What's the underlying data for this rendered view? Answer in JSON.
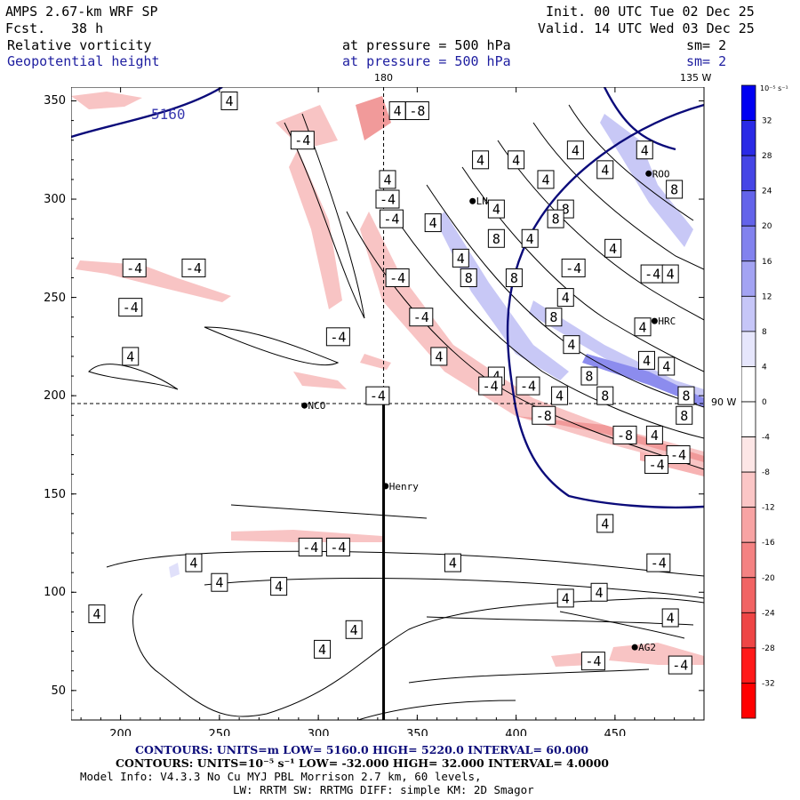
{
  "header": {
    "model": "AMPS 2.67-km WRF SP",
    "forecast_label": "Fcst.",
    "forecast_value": "38 h",
    "init": "Init. 00 UTC Tue 02 Dec 25",
    "valid": "Valid. 14 UTC Wed 03 Dec 25",
    "field1": "Relative vorticity",
    "field1_level": "at pressure =  500 hPa",
    "field1_sm": "sm= 2",
    "field2": "Geopotential height",
    "field2_level": "at pressure =  500 hPa",
    "field2_sm": "sm= 2"
  },
  "map": {
    "lon_labels": [
      {
        "text": "180"
      },
      {
        "text": "135 W"
      },
      {
        "text": "90 W"
      }
    ],
    "x_ticks": [
      200,
      250,
      300,
      350,
      400,
      450
    ],
    "y_ticks": [
      50,
      100,
      150,
      200,
      250,
      300,
      350
    ],
    "x_range": [
      175,
      495
    ],
    "y_range": [
      35,
      357
    ],
    "height_contour_label": "5160",
    "stations": [
      {
        "name": "ROO",
        "x": 467,
        "y": 313
      },
      {
        "name": "LN",
        "x": 378,
        "y": 299
      },
      {
        "name": "HRC",
        "x": 470,
        "y": 238
      },
      {
        "name": "NCO",
        "x": 293,
        "y": 195
      },
      {
        "name": "Henry",
        "x": 334,
        "y": 154
      },
      {
        "name": "AG2",
        "x": 460,
        "y": 72
      }
    ],
    "cross_section": {
      "x_line": 333,
      "y_line": 196
    },
    "vort_labels": [
      {
        "t": "-4",
        "x": 207,
        "y": 265
      },
      {
        "t": "-4",
        "x": 237,
        "y": 265
      },
      {
        "t": "-4",
        "x": 205,
        "y": 245
      },
      {
        "t": "-4",
        "x": 310,
        "y": 230
      },
      {
        "t": "-4",
        "x": 330,
        "y": 200
      },
      {
        "t": "4",
        "x": 205,
        "y": 220
      },
      {
        "t": "-4",
        "x": 337,
        "y": 290
      },
      {
        "t": "-4",
        "x": 340,
        "y": 260
      },
      {
        "t": "-4",
        "x": 335,
        "y": 300
      },
      {
        "t": "4",
        "x": 335,
        "y": 310
      },
      {
        "t": "-4",
        "x": 292,
        "y": 330
      },
      {
        "t": "4",
        "x": 340,
        "y": 345
      },
      {
        "t": "-8",
        "x": 350,
        "y": 345
      },
      {
        "t": "4",
        "x": 255,
        "y": 350
      },
      {
        "t": "4",
        "x": 382,
        "y": 320
      },
      {
        "t": "4",
        "x": 400,
        "y": 320
      },
      {
        "t": "4",
        "x": 415,
        "y": 310
      },
      {
        "t": "4",
        "x": 430,
        "y": 325
      },
      {
        "t": "4",
        "x": 445,
        "y": 315
      },
      {
        "t": "4",
        "x": 465,
        "y": 325
      },
      {
        "t": "8",
        "x": 480,
        "y": 305
      },
      {
        "t": "8",
        "x": 425,
        "y": 295
      },
      {
        "t": "8",
        "x": 420,
        "y": 290
      },
      {
        "t": "4",
        "x": 390,
        "y": 295
      },
      {
        "t": "8",
        "x": 390,
        "y": 280
      },
      {
        "t": "4",
        "x": 358,
        "y": 288
      },
      {
        "t": "4",
        "x": 372,
        "y": 270
      },
      {
        "t": "8",
        "x": 376,
        "y": 260
      },
      {
        "t": "8",
        "x": 399,
        "y": 260
      },
      {
        "t": "4",
        "x": 407,
        "y": 280
      },
      {
        "t": "-4",
        "x": 429,
        "y": 265
      },
      {
        "t": "4",
        "x": 449,
        "y": 275
      },
      {
        "t": "-4",
        "x": 469,
        "y": 262
      },
      {
        "t": "4",
        "x": 478,
        "y": 262
      },
      {
        "t": "4",
        "x": 425,
        "y": 250
      },
      {
        "t": "8",
        "x": 419,
        "y": 240
      },
      {
        "t": "-4",
        "x": 352,
        "y": 240
      },
      {
        "t": "4",
        "x": 361,
        "y": 220
      },
      {
        "t": "4",
        "x": 390,
        "y": 210
      },
      {
        "t": "-4",
        "x": 406,
        "y": 205
      },
      {
        "t": "4",
        "x": 422,
        "y": 200
      },
      {
        "t": "8",
        "x": 437,
        "y": 210
      },
      {
        "t": "8",
        "x": 445,
        "y": 200
      },
      {
        "t": "4",
        "x": 464,
        "y": 235
      },
      {
        "t": "4",
        "x": 466,
        "y": 218
      },
      {
        "t": "4",
        "x": 476,
        "y": 215
      },
      {
        "t": "8",
        "x": 486,
        "y": 200
      },
      {
        "t": "8",
        "x": 485,
        "y": 190
      },
      {
        "t": "4",
        "x": 428,
        "y": 226
      },
      {
        "t": "-8",
        "x": 414,
        "y": 190
      },
      {
        "t": "-8",
        "x": 455,
        "y": 180
      },
      {
        "t": "4",
        "x": 470,
        "y": 180
      },
      {
        "t": "-4",
        "x": 482,
        "y": 170
      },
      {
        "t": "-4",
        "x": 471,
        "y": 165
      },
      {
        "t": "-4",
        "x": 387,
        "y": 205
      },
      {
        "t": "4",
        "x": 445,
        "y": 135
      },
      {
        "t": "-4",
        "x": 296,
        "y": 123
      },
      {
        "t": "-4",
        "x": 310,
        "y": 123
      },
      {
        "t": "4",
        "x": 237,
        "y": 115
      },
      {
        "t": "4",
        "x": 368,
        "y": 115
      },
      {
        "t": "-4",
        "x": 472,
        "y": 115
      },
      {
        "t": "4",
        "x": 250,
        "y": 105
      },
      {
        "t": "4",
        "x": 280,
        "y": 103
      },
      {
        "t": "4",
        "x": 425,
        "y": 97
      },
      {
        "t": "4",
        "x": 442,
        "y": 100
      },
      {
        "t": "4",
        "x": 188,
        "y": 89
      },
      {
        "t": "4",
        "x": 318,
        "y": 81
      },
      {
        "t": "4",
        "x": 478,
        "y": 87
      },
      {
        "t": "4",
        "x": 302,
        "y": 71
      },
      {
        "t": "-4",
        "x": 439,
        "y": 65
      },
      {
        "t": "-4",
        "x": 483,
        "y": 63
      }
    ]
  },
  "colorbar": {
    "unit": "10⁻⁵ s⁻¹",
    "levels": [
      "32",
      "28",
      "24",
      "20",
      "16",
      "12",
      "8",
      "4",
      "0",
      "-4",
      "-8",
      "-12",
      "-16",
      "-20",
      "-24",
      "-28",
      "-32"
    ],
    "colors": [
      "#0000f2",
      "#2a2ae6",
      "#4545e6",
      "#6363ea",
      "#8282ee",
      "#a3a3f3",
      "#c6c6f8",
      "#e6e6fc",
      "#ffffff",
      "#ffffff",
      "#fde6e6",
      "#fbc6c6",
      "#f8a3a3",
      "#f48282",
      "#f16363",
      "#ee4545",
      "#ff1a1a",
      "#ff0000"
    ]
  },
  "footer": {
    "height_contours": "CONTOURS:  UNITS=m  LOW=  5160.0      HIGH=  5220.0      INTERVAL=   60.000",
    "vort_contours": "CONTOURS:  UNITS=10⁻⁵ s⁻¹  LOW=  -32.000      HIGH=  32.000      INTERVAL=   4.0000",
    "model_info": "Model Info: V4.3.3    No Cu    MYJ PBL  Morrison         2.7 km,  60 levels,",
    "model_info2": "LW: RRTM SW: RRTMG    DIFF: simple KM: 2D Smagor"
  }
}
